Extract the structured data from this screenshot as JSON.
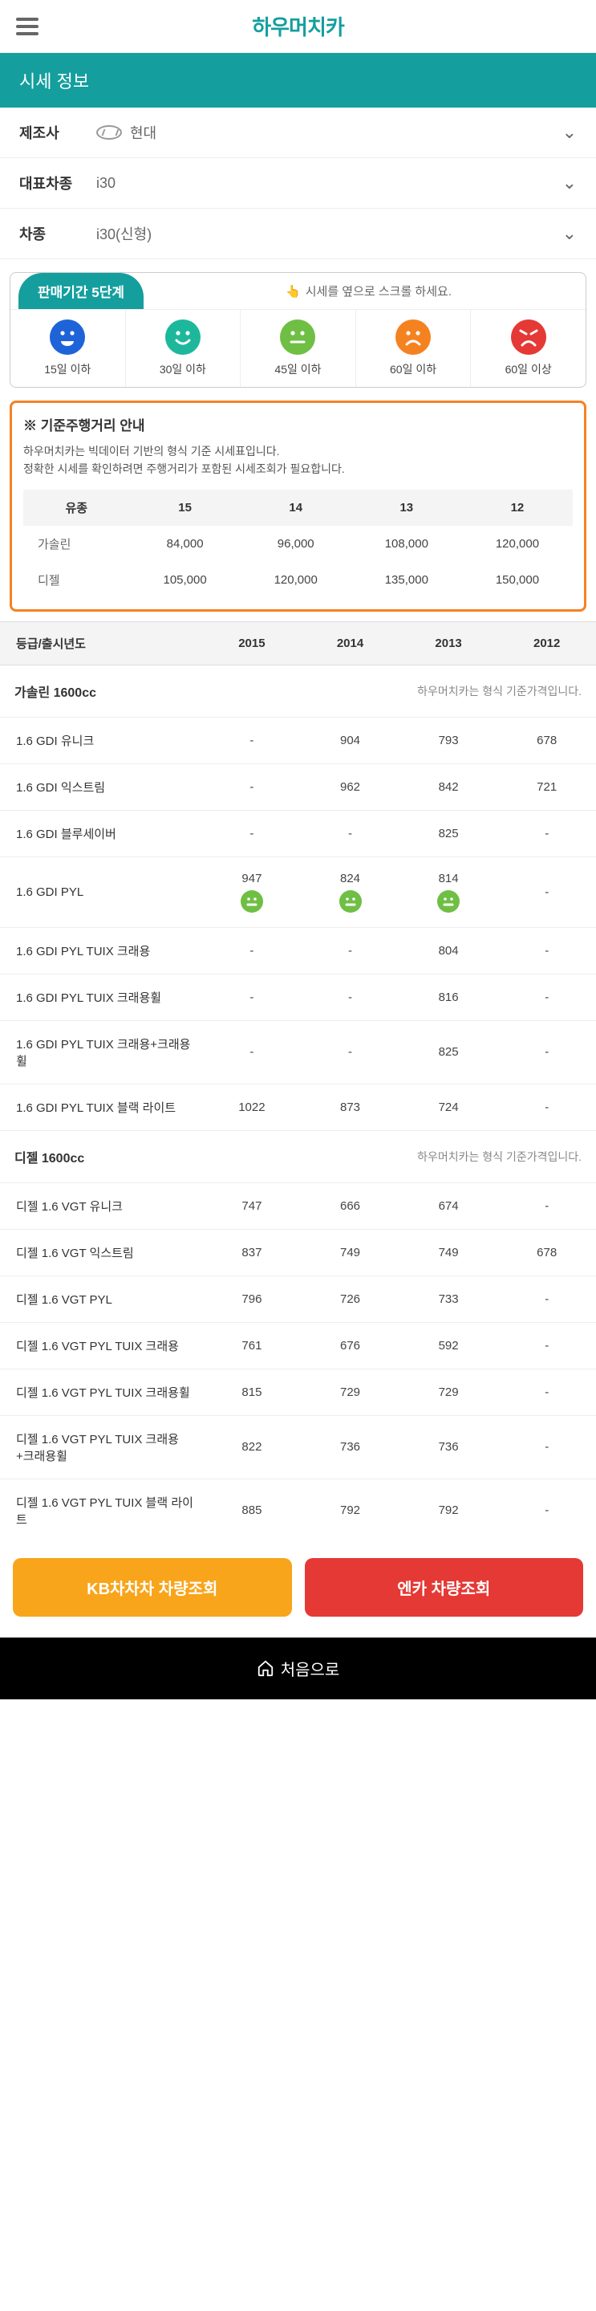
{
  "brand_name": "하우머치카",
  "page_title": "시세 정보",
  "filters": [
    {
      "label": "제조사",
      "value": "현대",
      "has_logo": true
    },
    {
      "label": "대표차종",
      "value": "i30",
      "has_logo": false
    },
    {
      "label": "차종",
      "value": "i30(신형)",
      "has_logo": false
    }
  ],
  "period_badge": "판매기간 5단계",
  "swipe_hint": "시세를 옆으로 스크롤 하세요.",
  "face_legend": [
    {
      "label": "15일 이하",
      "color": "#1e64d8",
      "mood": "laugh"
    },
    {
      "label": "30일 이하",
      "color": "#1db89b",
      "mood": "smile"
    },
    {
      "label": "45일 이하",
      "color": "#6fbf44",
      "mood": "neutral"
    },
    {
      "label": "60일 이하",
      "color": "#f58220",
      "mood": "sad"
    },
    {
      "label": "60일 이상",
      "color": "#e53935",
      "mood": "angry"
    }
  ],
  "notice": {
    "title": "※ 기준주행거리 안내",
    "line1": "하우머치카는 빅데이터 기반의 형식 기준 시세표입니다.",
    "line2": "정확한 시세를 확인하려면 주행거리가 포함된 시세조회가 필요합니다.",
    "table": {
      "head": [
        "유종",
        "15",
        "14",
        "13",
        "12"
      ],
      "rows": [
        {
          "label": "가솔린",
          "cells": [
            "84,000",
            "96,000",
            "108,000",
            "120,000"
          ]
        },
        {
          "label": "디젤",
          "cells": [
            "105,000",
            "120,000",
            "135,000",
            "150,000"
          ]
        }
      ]
    }
  },
  "price_table": {
    "head_label": "등급/출시년도",
    "years": [
      "2015",
      "2014",
      "2013",
      "2012"
    ],
    "groups": [
      {
        "section": "가솔린 1600cc",
        "section_note": "하우머치카는 형식 기준가격입니다.",
        "rows": [
          {
            "name": "1.6 GDI 유니크",
            "cells": [
              {
                "v": "-"
              },
              {
                "v": "904"
              },
              {
                "v": "793"
              },
              {
                "v": "678"
              }
            ]
          },
          {
            "name": "1.6 GDI 익스트림",
            "cells": [
              {
                "v": "-"
              },
              {
                "v": "962"
              },
              {
                "v": "842"
              },
              {
                "v": "721"
              }
            ]
          },
          {
            "name": "1.6 GDI 블루세이버",
            "cells": [
              {
                "v": "-"
              },
              {
                "v": "-"
              },
              {
                "v": "825"
              },
              {
                "v": "-"
              }
            ]
          },
          {
            "name": "1.6 GDI PYL",
            "cells": [
              {
                "v": "947",
                "face": "#6fbf44"
              },
              {
                "v": "824",
                "face": "#6fbf44"
              },
              {
                "v": "814",
                "face": "#6fbf44"
              },
              {
                "v": "-"
              }
            ]
          },
          {
            "name": "1.6 GDI PYL TUIX 크래용",
            "cells": [
              {
                "v": "-"
              },
              {
                "v": "-"
              },
              {
                "v": "804"
              },
              {
                "v": "-"
              }
            ]
          },
          {
            "name": "1.6 GDI PYL TUIX 크래용휠",
            "cells": [
              {
                "v": "-"
              },
              {
                "v": "-"
              },
              {
                "v": "816"
              },
              {
                "v": "-"
              }
            ]
          },
          {
            "name": "1.6 GDI PYL TUIX 크래용+크래용휠",
            "cells": [
              {
                "v": "-"
              },
              {
                "v": "-"
              },
              {
                "v": "825"
              },
              {
                "v": "-"
              }
            ]
          },
          {
            "name": "1.6 GDI PYL TUIX 블랙 라이트",
            "cells": [
              {
                "v": "1022"
              },
              {
                "v": "873"
              },
              {
                "v": "724"
              },
              {
                "v": "-"
              }
            ]
          }
        ]
      },
      {
        "section": "디젤 1600cc",
        "section_note": "하우머치카는 형식 기준가격입니다.",
        "rows": [
          {
            "name": "디젤 1.6 VGT 유니크",
            "cells": [
              {
                "v": "747"
              },
              {
                "v": "666"
              },
              {
                "v": "674"
              },
              {
                "v": "-"
              }
            ]
          },
          {
            "name": "디젤 1.6 VGT 익스트림",
            "cells": [
              {
                "v": "837"
              },
              {
                "v": "749"
              },
              {
                "v": "749"
              },
              {
                "v": "678"
              }
            ]
          },
          {
            "name": "디젤 1.6 VGT PYL",
            "cells": [
              {
                "v": "796"
              },
              {
                "v": "726"
              },
              {
                "v": "733"
              },
              {
                "v": "-"
              }
            ]
          },
          {
            "name": "디젤 1.6 VGT PYL TUIX 크래용",
            "cells": [
              {
                "v": "761"
              },
              {
                "v": "676"
              },
              {
                "v": "592"
              },
              {
                "v": "-"
              }
            ]
          },
          {
            "name": "디젤 1.6 VGT PYL TUIX 크래용휠",
            "cells": [
              {
                "v": "815"
              },
              {
                "v": "729"
              },
              {
                "v": "729"
              },
              {
                "v": "-"
              }
            ]
          },
          {
            "name": "디젤 1.6 VGT PYL TUIX 크래용+크래용휠",
            "cells": [
              {
                "v": "822"
              },
              {
                "v": "736"
              },
              {
                "v": "736"
              },
              {
                "v": "-"
              }
            ]
          },
          {
            "name": "디젤 1.6 VGT PYL TUIX 블랙 라이트",
            "cells": [
              {
                "v": "885"
              },
              {
                "v": "792"
              },
              {
                "v": "792"
              },
              {
                "v": "-"
              }
            ]
          }
        ]
      }
    ]
  },
  "buttons": {
    "kb": "KB차차차 차량조회",
    "encar": "엔카 차량조회"
  },
  "footer_label": "처음으로",
  "colors": {
    "primary": "#159e9e",
    "orange_border": "#f58220",
    "kb": "#f8a51b",
    "encar": "#e53935"
  }
}
